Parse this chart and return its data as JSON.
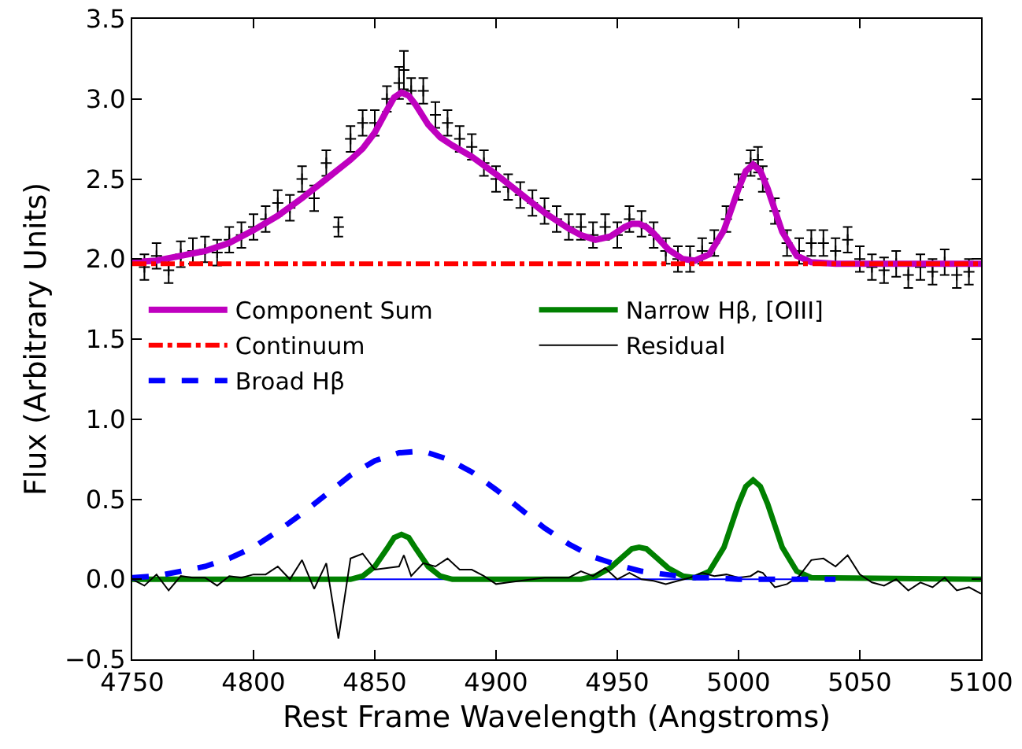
{
  "chart_data": {
    "type": "line",
    "xlabel": "Rest Frame Wavelength (Angstroms)",
    "ylabel": "Flux (Arbitrary Units)",
    "xlim": [
      4750,
      5100
    ],
    "xticks": [
      4750,
      4800,
      4850,
      4900,
      4950,
      5000,
      5050,
      5100
    ],
    "ylim": [
      -0.5,
      3.5
    ],
    "yticks": [
      {
        "value": -0.5,
        "label": "−0.5"
      },
      {
        "value": 0,
        "label": "0.0"
      },
      0.5,
      {
        "value": 1,
        "label": "1.0"
      },
      1.5,
      {
        "value": 2,
        "label": "2.0"
      },
      2.5,
      {
        "value": 3,
        "label": "3.0"
      },
      3.5
    ],
    "grid": false,
    "legend": "center left",
    "ref_lines": [
      {
        "axis": "y",
        "value": 0,
        "color": "#0000ff"
      }
    ],
    "series": [
      {
        "type": "scatter",
        "marker": "cross",
        "color": "#000000",
        "x": [
          4755,
          4760,
          4765,
          4770,
          4775,
          4780,
          4785,
          4790,
          4795,
          4800,
          4805,
          4810,
          4815,
          4820,
          4825,
          4830,
          4835,
          4840,
          4845,
          4850,
          4855,
          4860,
          4862,
          4865,
          4870,
          4875,
          4880,
          4885,
          4890,
          4895,
          4900,
          4905,
          4910,
          4915,
          4920,
          4925,
          4930,
          4935,
          4940,
          4945,
          4950,
          4955,
          4960,
          4965,
          4970,
          4975,
          4980,
          4985,
          4990,
          4995,
          5000,
          5005,
          5008,
          5010,
          5015,
          5020,
          5025,
          5030,
          5035,
          5040,
          5045,
          5050,
          5055,
          5060,
          5065,
          5070,
          5075,
          5080,
          5085,
          5090,
          5095
        ],
        "values": [
          1.95,
          2.02,
          1.93,
          2.03,
          2.05,
          2.06,
          2.04,
          2.12,
          2.15,
          2.2,
          2.25,
          2.35,
          2.32,
          2.5,
          2.38,
          2.6,
          2.2,
          2.75,
          2.85,
          2.85,
          3.0,
          3.1,
          3.18,
          3.05,
          3.05,
          2.9,
          2.85,
          2.75,
          2.7,
          2.6,
          2.5,
          2.45,
          2.4,
          2.35,
          2.3,
          2.25,
          2.2,
          2.2,
          2.15,
          2.2,
          2.15,
          2.25,
          2.22,
          2.15,
          2.05,
          2.0,
          2.0,
          2.05,
          2.1,
          2.25,
          2.45,
          2.6,
          2.62,
          2.5,
          2.3,
          2.1,
          2.05,
          2.1,
          2.1,
          2.05,
          2.12,
          2.0,
          1.95,
          1.93,
          1.97,
          1.9,
          1.95,
          1.92,
          1.98,
          1.9,
          1.92
        ],
        "errors": [
          0.08,
          0.08,
          0.08,
          0.08,
          0.08,
          0.08,
          0.08,
          0.08,
          0.08,
          0.08,
          0.08,
          0.08,
          0.08,
          0.08,
          0.08,
          0.08,
          0.06,
          0.08,
          0.08,
          0.08,
          0.08,
          0.1,
          0.12,
          0.08,
          0.08,
          0.08,
          0.08,
          0.08,
          0.08,
          0.08,
          0.08,
          0.08,
          0.08,
          0.08,
          0.08,
          0.08,
          0.08,
          0.08,
          0.08,
          0.08,
          0.08,
          0.08,
          0.08,
          0.08,
          0.08,
          0.08,
          0.08,
          0.08,
          0.08,
          0.08,
          0.08,
          0.08,
          0.08,
          0.08,
          0.08,
          0.08,
          0.08,
          0.08,
          0.08,
          0.08,
          0.08,
          0.08,
          0.08,
          0.08,
          0.08,
          0.08,
          0.08,
          0.08,
          0.08,
          0.08,
          0.08
        ]
      },
      {
        "name": "Component Sum",
        "line_style": "solid",
        "color": "#bf00bf",
        "x": [
          4750,
          4760,
          4770,
          4780,
          4790,
          4800,
          4810,
          4820,
          4830,
          4840,
          4845,
          4850,
          4855,
          4858,
          4861,
          4864,
          4867,
          4872,
          4877,
          4882,
          4890,
          4900,
          4910,
          4920,
          4930,
          4935,
          4941,
          4947,
          4953,
          4956,
          4959,
          4962,
          4965,
          4971,
          4977,
          4982,
          4988,
          4994,
          5000,
          5003,
          5006,
          5009,
          5012,
          5018,
          5024,
          5030,
          5040,
          5100
        ],
        "values": [
          1.98,
          1.99,
          2.02,
          2.05,
          2.1,
          2.18,
          2.27,
          2.38,
          2.5,
          2.62,
          2.69,
          2.79,
          2.93,
          3.01,
          3.04,
          3.02,
          2.96,
          2.84,
          2.76,
          2.71,
          2.64,
          2.53,
          2.41,
          2.29,
          2.19,
          2.15,
          2.12,
          2.14,
          2.2,
          2.22,
          2.22,
          2.2,
          2.16,
          2.06,
          2.0,
          1.99,
          2.03,
          2.18,
          2.44,
          2.55,
          2.59,
          2.55,
          2.44,
          2.17,
          2.02,
          1.98,
          1.97,
          1.97
        ]
      },
      {
        "name": "Narrow Hβ, [OIII]",
        "line_style": "solid",
        "color": "#008000",
        "x": [
          4750,
          4840,
          4845,
          4850,
          4855,
          4858,
          4861,
          4864,
          4867,
          4872,
          4877,
          4882,
          4935,
          4941,
          4947,
          4953,
          4956,
          4959,
          4962,
          4965,
          4971,
          4977,
          4982,
          4988,
          4994,
          5000,
          5003,
          5006,
          5009,
          5012,
          5018,
          5024,
          5030,
          5100
        ],
        "values": [
          0,
          0,
          0.02,
          0.08,
          0.19,
          0.26,
          0.28,
          0.26,
          0.19,
          0.08,
          0.02,
          0,
          0,
          0.02,
          0.07,
          0.15,
          0.19,
          0.2,
          0.19,
          0.15,
          0.07,
          0.02,
          0.01,
          0.05,
          0.2,
          0.47,
          0.58,
          0.62,
          0.58,
          0.47,
          0.2,
          0.05,
          0.01,
          0
        ]
      },
      {
        "name": "Continuum",
        "line_style": "dashdot",
        "color": "#ff0000",
        "x": [
          4750,
          5100
        ],
        "values": [
          1.97,
          1.97
        ]
      },
      {
        "name": "Residual",
        "line_style": "solid",
        "color": "#000000",
        "x": [
          4750,
          4755,
          4760,
          4765,
          4770,
          4775,
          4780,
          4785,
          4790,
          4795,
          4800,
          4805,
          4810,
          4815,
          4820,
          4825,
          4830,
          4835,
          4840,
          4845,
          4850,
          4855,
          4860,
          4862,
          4865,
          4870,
          4875,
          4880,
          4885,
          4890,
          4895,
          4900,
          4905,
          4910,
          4915,
          4920,
          4925,
          4930,
          4935,
          4940,
          4945,
          4950,
          4955,
          4960,
          4965,
          4970,
          4975,
          4980,
          4985,
          4990,
          4995,
          5000,
          5005,
          5008,
          5010,
          5015,
          5020,
          5025,
          5030,
          5035,
          5040,
          5045,
          5050,
          5055,
          5060,
          5065,
          5070,
          5075,
          5080,
          5085,
          5090,
          5095,
          5100
        ],
        "values": [
          0,
          -0.04,
          0.03,
          -0.07,
          0.02,
          0.01,
          0.01,
          -0.04,
          0.02,
          0.01,
          0.03,
          0.03,
          0.08,
          0,
          0.12,
          -0.06,
          0.1,
          -0.37,
          0.13,
          0.16,
          0.06,
          0.07,
          0.08,
          0.15,
          0.02,
          0.1,
          0.08,
          0.13,
          0.06,
          0.06,
          0.02,
          -0.03,
          -0.02,
          -0.01,
          0,
          0.01,
          0.01,
          0.01,
          0.05,
          0.02,
          0.07,
          0,
          0.04,
          0,
          -0.01,
          -0.03,
          -0.01,
          0.01,
          0.04,
          0.02,
          0.03,
          0.01,
          0.02,
          0.05,
          0.04,
          -0.05,
          -0.03,
          0.02,
          0.12,
          0.13,
          0.08,
          0.15,
          0.03,
          -0.02,
          -0.04,
          0,
          -0.07,
          -0.02,
          -0.05,
          0.01,
          -0.07,
          -0.05,
          -0.09
        ]
      },
      {
        "name": "Broad Hβ",
        "line_style": "dashed",
        "color": "#0000ff",
        "x": [
          4750,
          4760,
          4770,
          4780,
          4790,
          4800,
          4810,
          4820,
          4830,
          4840,
          4850,
          4860,
          4870,
          4880,
          4890,
          4900,
          4910,
          4920,
          4930,
          4940,
          4950,
          4960,
          4970,
          4980,
          4990,
          5000,
          5010,
          5020,
          5040
        ],
        "values": [
          0.01,
          0.02,
          0.05,
          0.08,
          0.13,
          0.2,
          0.3,
          0.41,
          0.53,
          0.65,
          0.74,
          0.79,
          0.8,
          0.75,
          0.67,
          0.56,
          0.44,
          0.32,
          0.22,
          0.14,
          0.09,
          0.05,
          0.03,
          0.01,
          0.01,
          0,
          0,
          0,
          0
        ]
      }
    ]
  }
}
